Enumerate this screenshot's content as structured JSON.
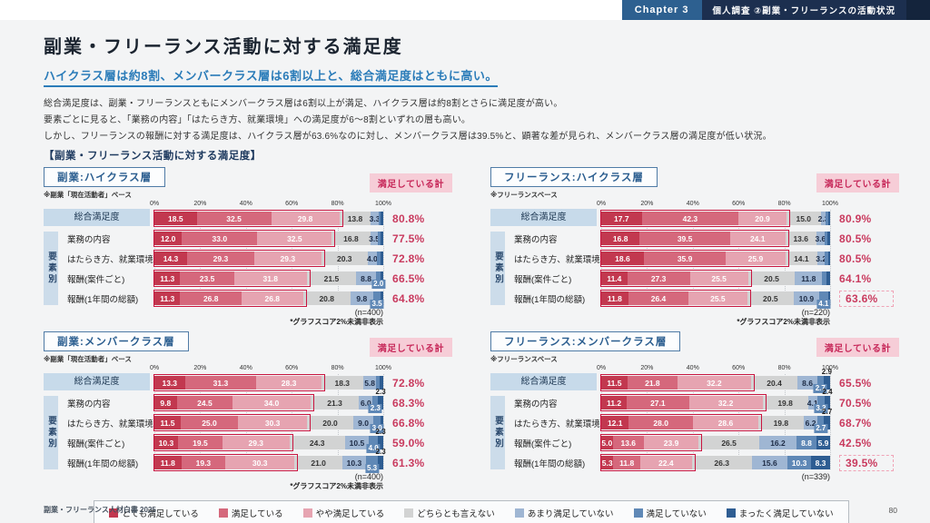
{
  "header": {
    "chapter": "Chapter 3",
    "section": "個人調査 ②副業・フリーランスの活動状況"
  },
  "page": {
    "title": "副業・フリーランス活動に対する満足度",
    "lead": "ハイクラス層は約8割、メンバークラス層は6割以上と、総合満足度はともに高い。",
    "body": [
      "総合満足度は、副業・フリーランスともにメンバークラス層は6割以上が満足、ハイクラス層は約8割とさらに満足度が高い。",
      "要素ごとに見ると、「業務の内容」「はたらき方、就業環境」への満足度が6〜8割といずれの層も高い。",
      "しかし、フリーランスの報酬に対する満足度は、ハイクラス層が63.6%なのに対し、メンバークラス層は39.5%と、顕著な差が見られ、メンバークラス層の満足度が低い状況。"
    ],
    "section_heading": "【副業・フリーランス活動に対する満足度】",
    "footer_left": "副業・フリーランス人材白書 2025",
    "page_number": "80"
  },
  "chart_data": {
    "type": "bar",
    "stacked": true,
    "orientation": "horizontal",
    "xlim": [
      0,
      100
    ],
    "x_unit": "%",
    "axis_ticks": [
      "0%",
      "20%",
      "40%",
      "60%",
      "80%",
      "100%"
    ],
    "satisfied_label": "満足している計",
    "factor_label": "要素別",
    "colors": [
      "#c2384f",
      "#d5687c",
      "#e6a4b1",
      "#d2d3d3",
      "#9fb6d3",
      "#5f88b6",
      "#2e5d92"
    ],
    "legend": [
      {
        "label": "とても満足している",
        "color": "#c2384f"
      },
      {
        "label": "満足している",
        "color": "#d5687c"
      },
      {
        "label": "やや満足している",
        "color": "#e6a4b1"
      },
      {
        "label": "どちらとも言えない",
        "color": "#d2d3d3"
      },
      {
        "label": "あまり満足していない",
        "color": "#9fb6d3"
      },
      {
        "label": "満足していない",
        "color": "#5f88b6"
      },
      {
        "label": "まったく満足していない",
        "color": "#2e5d92"
      }
    ],
    "panels": [
      {
        "title": "副業:ハイクラス層",
        "note": "※副業「現在活動者」ベース",
        "n": "(n=400)",
        "footnote": "*グラフスコア2%未満非表示",
        "rows": [
          {
            "label": "総合満足度",
            "total": "80.8%",
            "highlight": false,
            "segments": [
              {
                "v": 18.5,
                "c": 0
              },
              {
                "v": 32.5,
                "c": 1
              },
              {
                "v": 29.8,
                "c": 2
              },
              {
                "v": 13.8,
                "c": 3
              },
              {
                "v": 3.3,
                "c": 4
              },
              {
                "v": 1.1,
                "c": 5,
                "h": true
              },
              {
                "v": 1.0,
                "c": 6,
                "h": true
              }
            ]
          },
          {
            "label": "業務の内容",
            "total": "77.5%",
            "highlight": false,
            "segments": [
              {
                "v": 12.0,
                "c": 0
              },
              {
                "v": 33.0,
                "c": 1
              },
              {
                "v": 32.5,
                "c": 2
              },
              {
                "v": 16.8,
                "c": 3
              },
              {
                "v": 3.5,
                "c": 4
              },
              {
                "v": 1.2,
                "c": 5,
                "h": true
              },
              {
                "v": 1.0,
                "c": 6,
                "h": true
              }
            ]
          },
          {
            "label": "はたらき方、就業環境",
            "total": "72.8%",
            "highlight": false,
            "segments": [
              {
                "v": 14.3,
                "c": 0
              },
              {
                "v": 29.3,
                "c": 1
              },
              {
                "v": 29.3,
                "c": 2
              },
              {
                "v": 20.3,
                "c": 3
              },
              {
                "v": 4.0,
                "c": 4
              },
              {
                "v": 1.5,
                "c": 5,
                "h": true
              },
              {
                "v": 1.3,
                "c": 6,
                "h": true
              }
            ]
          },
          {
            "label": "報酬(案件ごと)",
            "total": "66.5%",
            "highlight": false,
            "segments": [
              {
                "v": 11.3,
                "c": 0
              },
              {
                "v": 23.5,
                "c": 1
              },
              {
                "v": 31.8,
                "c": 2
              },
              {
                "v": 21.5,
                "c": 3
              },
              {
                "v": 8.8,
                "c": 4
              },
              {
                "v": 2.0,
                "c": 5
              },
              {
                "v": 1.1,
                "c": 6,
                "h": true
              }
            ]
          },
          {
            "label": "報酬(1年間の総額)",
            "total": "64.8%",
            "highlight": false,
            "segments": [
              {
                "v": 11.3,
                "c": 0
              },
              {
                "v": 26.8,
                "c": 1
              },
              {
                "v": 26.8,
                "c": 2
              },
              {
                "v": 20.8,
                "c": 3
              },
              {
                "v": 9.8,
                "c": 4
              },
              {
                "v": 3.5,
                "c": 5
              },
              {
                "v": 1.0,
                "c": 6,
                "h": true
              }
            ]
          }
        ]
      },
      {
        "title": "フリーランス:ハイクラス層",
        "note": "※フリーランスベース",
        "n": "(n=220)",
        "footnote": "*グラフスコア2%未満非表示",
        "rows": [
          {
            "label": "総合満足度",
            "total": "80.9%",
            "highlight": false,
            "segments": [
              {
                "v": 17.7,
                "c": 0
              },
              {
                "v": 42.3,
                "c": 1
              },
              {
                "v": 20.9,
                "c": 2
              },
              {
                "v": 15.0,
                "c": 3
              },
              {
                "v": 2.3,
                "c": 4
              },
              {
                "v": 1.0,
                "c": 5,
                "h": true
              },
              {
                "v": 0.8,
                "c": 6,
                "h": true
              }
            ]
          },
          {
            "label": "業務の内容",
            "total": "80.5%",
            "highlight": false,
            "segments": [
              {
                "v": 16.8,
                "c": 0
              },
              {
                "v": 39.5,
                "c": 1
              },
              {
                "v": 24.1,
                "c": 2
              },
              {
                "v": 13.6,
                "c": 3
              },
              {
                "v": 3.6,
                "c": 4
              },
              {
                "v": 1.4,
                "c": 5,
                "h": true
              },
              {
                "v": 1.0,
                "c": 6,
                "h": true
              }
            ]
          },
          {
            "label": "はたらき方、就業環境",
            "total": "80.5%",
            "highlight": false,
            "segments": [
              {
                "v": 18.6,
                "c": 0
              },
              {
                "v": 35.9,
                "c": 1
              },
              {
                "v": 25.9,
                "c": 2
              },
              {
                "v": 14.1,
                "c": 3
              },
              {
                "v": 3.2,
                "c": 4
              },
              {
                "v": 1.4,
                "c": 5,
                "h": true
              },
              {
                "v": 0.9,
                "c": 6,
                "h": true
              }
            ]
          },
          {
            "label": "報酬(案件ごと)",
            "total": "64.1%",
            "highlight": false,
            "segments": [
              {
                "v": 11.4,
                "c": 0
              },
              {
                "v": 27.3,
                "c": 1
              },
              {
                "v": 25.5,
                "c": 2
              },
              {
                "v": 20.5,
                "c": 3
              },
              {
                "v": 11.8,
                "c": 4
              },
              {
                "v": 1.8,
                "c": 5,
                "h": true
              },
              {
                "v": 1.7,
                "c": 6,
                "h": true
              }
            ]
          },
          {
            "label": "報酬(1年間の総額)",
            "total": "63.6%",
            "highlight": true,
            "segments": [
              {
                "v": 11.8,
                "c": 0
              },
              {
                "v": 26.4,
                "c": 1
              },
              {
                "v": 25.5,
                "c": 2
              },
              {
                "v": 20.5,
                "c": 3
              },
              {
                "v": 10.9,
                "c": 4
              },
              {
                "v": 4.1,
                "c": 5
              },
              {
                "v": 0.8,
                "c": 6,
                "h": true
              }
            ]
          }
        ]
      },
      {
        "title": "副業:メンバークラス層",
        "note": "※副業「現在活動者」ベース",
        "n": "(n=400)",
        "footnote": "*グラフスコア2%未満非表示",
        "rows": [
          {
            "label": "総合満足度",
            "total": "72.8%",
            "highlight": false,
            "segments": [
              {
                "v": 13.3,
                "c": 0
              },
              {
                "v": 31.3,
                "c": 1
              },
              {
                "v": 28.3,
                "c": 2
              },
              {
                "v": 18.3,
                "c": 3
              },
              {
                "v": 5.8,
                "c": 4
              },
              {
                "v": 1.6,
                "c": 5,
                "h": true
              },
              {
                "v": 1.4,
                "c": 6,
                "h": true
              }
            ]
          },
          {
            "label": "業務の内容",
            "total": "68.3%",
            "highlight": false,
            "segments": [
              {
                "v": 9.8,
                "c": 0
              },
              {
                "v": 24.5,
                "c": 1
              },
              {
                "v": 34.0,
                "c": 2
              },
              {
                "v": 21.3,
                "c": 3
              },
              {
                "v": 6.0,
                "c": 4
              },
              {
                "v": 2.3,
                "c": 5
              },
              {
                "v": 2.3,
                "c": 6
              }
            ]
          },
          {
            "label": "はたらき方、就業環境",
            "total": "66.8%",
            "highlight": false,
            "segments": [
              {
                "v": 11.5,
                "c": 0
              },
              {
                "v": 25.0,
                "c": 1
              },
              {
                "v": 30.3,
                "c": 2
              },
              {
                "v": 20.0,
                "c": 3
              },
              {
                "v": 9.0,
                "c": 4
              },
              {
                "v": 3.0,
                "c": 5
              },
              {
                "v": 1.2,
                "c": 6,
                "h": true
              }
            ]
          },
          {
            "label": "報酬(案件ごと)",
            "total": "59.0%",
            "highlight": false,
            "segments": [
              {
                "v": 10.3,
                "c": 0
              },
              {
                "v": 19.5,
                "c": 1
              },
              {
                "v": 29.3,
                "c": 2
              },
              {
                "v": 24.3,
                "c": 3
              },
              {
                "v": 10.5,
                "c": 4
              },
              {
                "v": 4.0,
                "c": 5
              },
              {
                "v": 2.3,
                "c": 6
              }
            ]
          },
          {
            "label": "報酬(1年間の総額)",
            "total": "61.3%",
            "highlight": false,
            "segments": [
              {
                "v": 11.8,
                "c": 0
              },
              {
                "v": 19.3,
                "c": 1
              },
              {
                "v": 30.3,
                "c": 2
              },
              {
                "v": 21.0,
                "c": 3
              },
              {
                "v": 10.3,
                "c": 4
              },
              {
                "v": 5.3,
                "c": 5
              },
              {
                "v": 2.3,
                "c": 6
              }
            ]
          }
        ]
      },
      {
        "title": "フリーランス:メンバークラス層",
        "note": "※フリーランスベース",
        "n": "(n=339)",
        "footnote": "",
        "rows": [
          {
            "label": "総合満足度",
            "total": "65.5%",
            "highlight": false,
            "segments": [
              {
                "v": 11.5,
                "c": 0
              },
              {
                "v": 21.8,
                "c": 1
              },
              {
                "v": 32.2,
                "c": 2
              },
              {
                "v": 20.4,
                "c": 3
              },
              {
                "v": 8.6,
                "c": 4
              },
              {
                "v": 2.7,
                "c": 5
              },
              {
                "v": 2.9,
                "c": 6
              }
            ]
          },
          {
            "label": "業務の内容",
            "total": "70.5%",
            "highlight": false,
            "segments": [
              {
                "v": 11.2,
                "c": 0
              },
              {
                "v": 27.1,
                "c": 1
              },
              {
                "v": 32.2,
                "c": 2
              },
              {
                "v": 19.8,
                "c": 3
              },
              {
                "v": 4.1,
                "c": 4
              },
              {
                "v": 3.2,
                "c": 5
              },
              {
                "v": 2.4,
                "c": 6
              }
            ]
          },
          {
            "label": "はたらき方、就業環境",
            "total": "68.7%",
            "highlight": false,
            "segments": [
              {
                "v": 12.1,
                "c": 0
              },
              {
                "v": 28.0,
                "c": 1
              },
              {
                "v": 28.6,
                "c": 2
              },
              {
                "v": 19.8,
                "c": 3
              },
              {
                "v": 6.2,
                "c": 4
              },
              {
                "v": 2.7,
                "c": 5
              },
              {
                "v": 2.7,
                "c": 6
              }
            ]
          },
          {
            "label": "報酬(案件ごと)",
            "total": "42.5%",
            "highlight": false,
            "segments": [
              {
                "v": 5.0,
                "c": 0
              },
              {
                "v": 13.6,
                "c": 1
              },
              {
                "v": 23.9,
                "c": 2
              },
              {
                "v": 26.5,
                "c": 3
              },
              {
                "v": 16.2,
                "c": 4
              },
              {
                "v": 8.8,
                "c": 5
              },
              {
                "v": 5.9,
                "c": 6
              }
            ]
          },
          {
            "label": "報酬(1年間の総額)",
            "total": "39.5%",
            "highlight": true,
            "segments": [
              {
                "v": 5.3,
                "c": 0
              },
              {
                "v": 11.8,
                "c": 1
              },
              {
                "v": 22.4,
                "c": 2
              },
              {
                "v": 26.3,
                "c": 3
              },
              {
                "v": 15.6,
                "c": 4
              },
              {
                "v": 10.3,
                "c": 5
              },
              {
                "v": 8.3,
                "c": 6
              }
            ]
          }
        ]
      }
    ]
  }
}
